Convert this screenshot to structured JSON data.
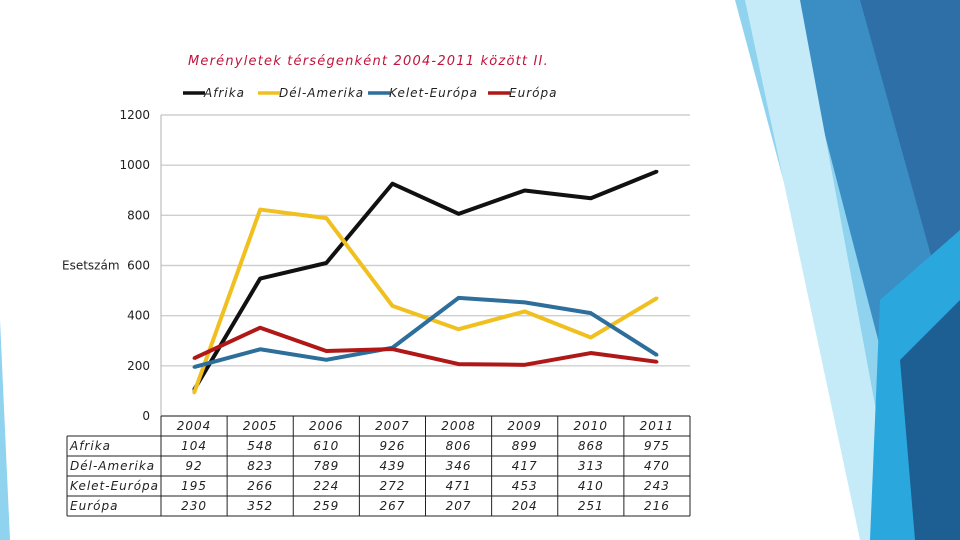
{
  "title": "Merényletek térségenként  2004-2011 között II.",
  "chart_data": {
    "type": "line",
    "title": "Merényletek térségenként  2004-2011 között II.",
    "ylabel": "Esetszám",
    "xlabel": "",
    "ylim": [
      0,
      1200
    ],
    "yticks": [
      "0",
      "200",
      "400",
      "600",
      "800",
      "1000",
      "1200"
    ],
    "grid": true,
    "legend": "top",
    "categories": [
      "2004",
      "2005",
      "2006",
      "2007",
      "2008",
      "2009",
      "2010",
      "2011"
    ],
    "series": [
      {
        "name": "Afrika",
        "color": "#111111",
        "values": [
          104,
          548,
          610,
          926,
          806,
          899,
          868,
          975
        ]
      },
      {
        "name": "Dél-Amerika",
        "color": "#f0c020",
        "values": [
          92,
          823,
          789,
          439,
          346,
          417,
          313,
          470
        ]
      },
      {
        "name": "Kelet-Európa",
        "color": "#2e6e9a",
        "values": [
          195,
          266,
          224,
          272,
          471,
          453,
          410,
          243
        ]
      },
      {
        "name": "Európa",
        "color": "#b01818",
        "values": [
          230,
          352,
          259,
          267,
          207,
          204,
          251,
          216
        ]
      }
    ]
  }
}
